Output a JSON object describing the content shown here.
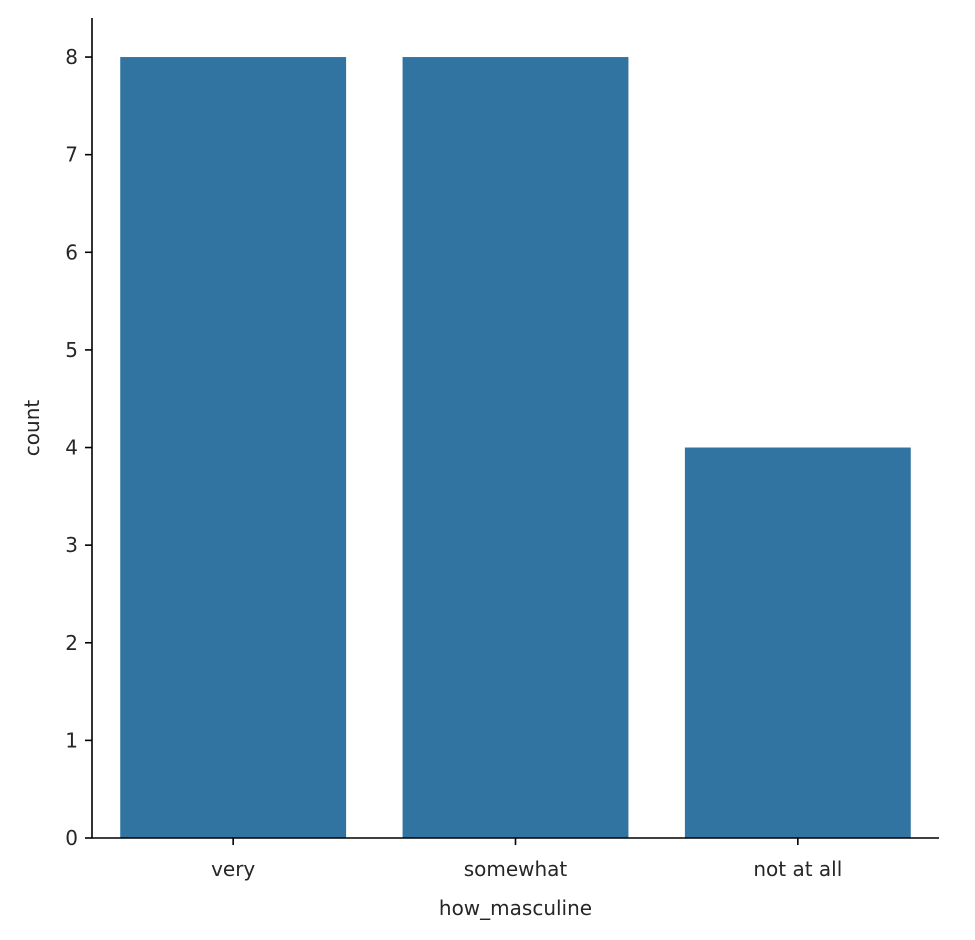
{
  "chart_data": {
    "type": "bar",
    "categories": [
      "very",
      "somewhat",
      "not at all"
    ],
    "values": [
      8,
      8,
      4
    ],
    "xlabel": "how_masculine",
    "ylabel": "count",
    "ylim": [
      0,
      8.4
    ],
    "yticks": [
      0,
      1,
      2,
      3,
      4,
      5,
      6,
      7,
      8
    ],
    "bar_color": "#3274a1",
    "axis_color": "#000000",
    "grid": false,
    "legend": "none"
  }
}
